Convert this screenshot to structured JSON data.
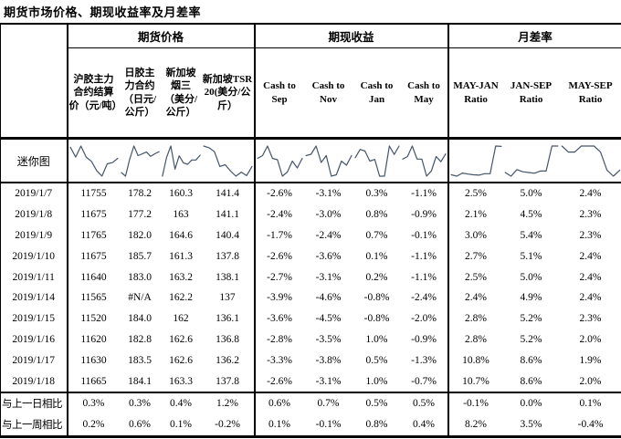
{
  "title": "期货市场价格、期现收益率及月差率",
  "colors": {
    "border": "#000000",
    "text": "#000000",
    "sparkline": "#44546a"
  },
  "table": {
    "groups": [
      {
        "label": "期货价格",
        "columns": [
          "沪胶主力合约结算价（元/吨）",
          "日胶主力合约（日元/公斤）",
          "新加坡烟三（美分/公斤）",
          "新加坡TSR20(美分/公斤）"
        ]
      },
      {
        "label": "期现收益",
        "columns": [
          "Cash to Sep",
          "Cash to Nov",
          "Cash to Jan",
          "Cash to May"
        ]
      },
      {
        "label": "月差率",
        "columns": [
          "MAY-JAN Ratio",
          "JAN-SEP Ratio",
          "MAY-SEP Ratio"
        ]
      }
    ],
    "sparkline_row_label": "迷你图",
    "rows": [
      {
        "date": "2019/1/7",
        "values": [
          "11755",
          "178.2",
          "160.3",
          "141.4",
          "-2.6%",
          "-3.1%",
          "0.3%",
          "-1.1%",
          "2.5%",
          "5.0%",
          "2.4%"
        ]
      },
      {
        "date": "2019/1/8",
        "values": [
          "11675",
          "177.2",
          "163",
          "141.1",
          "-2.4%",
          "-3.0%",
          "0.8%",
          "-0.9%",
          "2.1%",
          "4.5%",
          "2.3%"
        ]
      },
      {
        "date": "2019/1/9",
        "values": [
          "11765",
          "182.0",
          "164.6",
          "140.4",
          "-1.7%",
          "-2.4%",
          "0.7%",
          "-0.1%",
          "3.0%",
          "5.4%",
          "2.3%"
        ]
      },
      {
        "date": "2019/1/10",
        "values": [
          "11675",
          "185.7",
          "161.3",
          "137.8",
          "-2.6%",
          "-3.6%",
          "0.1%",
          "-1.1%",
          "2.7%",
          "5.1%",
          "2.4%"
        ]
      },
      {
        "date": "2019/1/11",
        "values": [
          "11640",
          "183.0",
          "163.2",
          "138.1",
          "-2.7%",
          "-3.1%",
          "0.2%",
          "-1.1%",
          "2.5%",
          "5.0%",
          "2.4%"
        ]
      },
      {
        "date": "2019/1/14",
        "values": [
          "11565",
          "#N/A",
          "162.2",
          "137",
          "-3.9%",
          "-4.6%",
          "-0.8%",
          "-2.4%",
          "2.4%",
          "4.9%",
          "2.4%"
        ]
      },
      {
        "date": "2019/1/15",
        "values": [
          "11520",
          "184.0",
          "162",
          "136.1",
          "-3.6%",
          "-4.5%",
          "-0.8%",
          "-2.0%",
          "2.8%",
          "5.2%",
          "2.3%"
        ]
      },
      {
        "date": "2019/1/16",
        "values": [
          "11620",
          "182.8",
          "162.6",
          "136.8",
          "-2.8%",
          "-3.5%",
          "1.0%",
          "-0.9%",
          "2.8%",
          "5.2%",
          "2.0%"
        ]
      },
      {
        "date": "2019/1/17",
        "values": [
          "11630",
          "183.5",
          "162.6",
          "136.2",
          "-3.3%",
          "-3.8%",
          "0.5%",
          "-1.3%",
          "10.8%",
          "8.6%",
          "1.9%"
        ]
      },
      {
        "date": "2019/1/18",
        "values": [
          "11665",
          "184.1",
          "163.3",
          "137.8",
          "-2.6%",
          "-3.1%",
          "1.0%",
          "-0.7%",
          "10.7%",
          "8.6%",
          "2.0%"
        ]
      }
    ],
    "footer_rows": [
      {
        "label": "与上一日相比",
        "values": [
          "0.3%",
          "0.3%",
          "0.4%",
          "1.2%",
          "0.6%",
          "0.7%",
          "0.5%",
          "0.5%",
          "-0.1%",
          "0.0%",
          "0.1%"
        ]
      },
      {
        "label": "与上一周相比",
        "values": [
          "0.2%",
          "0.6%",
          "0.1%",
          "-0.2%",
          "0.1%",
          "-0.1%",
          "0.8%",
          "0.4%",
          "8.2%",
          "3.5%",
          "-0.4%"
        ]
      }
    ]
  }
}
